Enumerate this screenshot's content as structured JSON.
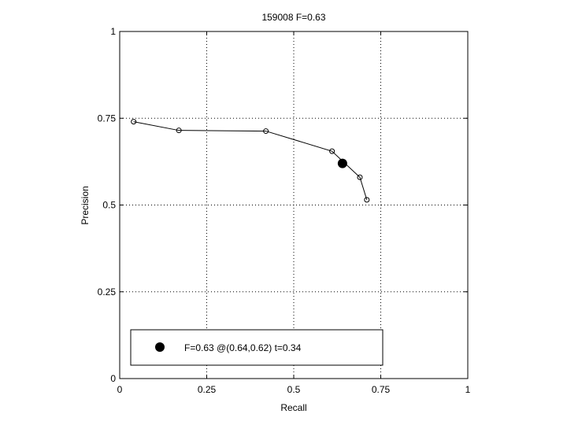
{
  "chart_data": {
    "type": "line",
    "title": "159008 F=0.63",
    "xlabel": "Recall",
    "ylabel": "Precision",
    "xlim": [
      0,
      1
    ],
    "ylim": [
      0,
      1
    ],
    "xticks": [
      0,
      0.25,
      0.5,
      0.75,
      1
    ],
    "xtick_labels": [
      "0",
      "0.25",
      "0.5",
      "0.75",
      "1"
    ],
    "yticks": [
      0,
      0.25,
      0.5,
      0.75,
      1
    ],
    "ytick_labels": [
      "0",
      "0.25",
      "0.5",
      "0.75",
      "1"
    ],
    "grid": true,
    "legend_placement": "bottom-left",
    "line_color": "#000000",
    "series": [
      {
        "x": [
          0.04,
          0.17,
          0.42,
          0.61,
          0.69,
          0.71
        ],
        "y": [
          0.74,
          0.715,
          0.713,
          0.655,
          0.58,
          0.515
        ]
      }
    ],
    "best_point": {
      "x": 0.64,
      "y": 0.62
    },
    "legend_label": "F=0.63 @(0.64,0.62) t=0.34"
  }
}
